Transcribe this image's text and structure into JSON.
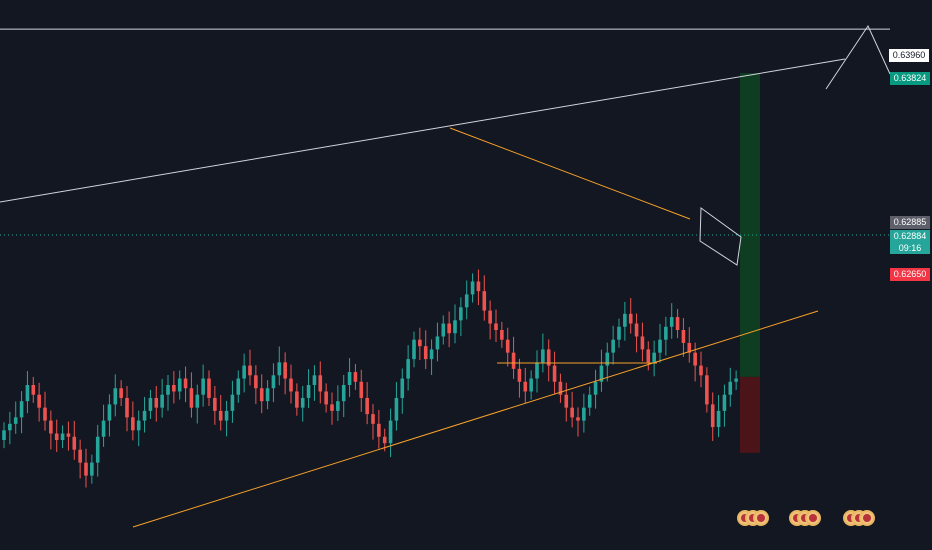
{
  "price_scale": {
    "top_level": "0.63960",
    "target": "0.63824",
    "last_marker": "0.62885",
    "current_price": "0.62884",
    "countdown": "09:16",
    "stop": "0.62650"
  },
  "colors": {
    "background": "#131722",
    "bull": "#26a69a",
    "bear": "#ef5350",
    "trend_white": "#d1d4dc",
    "trend_orange": "#f7a129",
    "target_zone": "#0f3d22",
    "stop_zone": "#4a1418"
  },
  "event_icons": [
    "calendar-event-icon",
    "calendar-event-icon",
    "calendar-event-icon"
  ],
  "chart_data": {
    "type": "candlestick",
    "ylim": [
      0.6235,
      0.6405
    ],
    "levels": [
      0.6396,
      0.63824,
      0.62885,
      0.6265
    ],
    "closes": [
      0.6272,
      0.6274,
      0.6276,
      0.6281,
      0.6286,
      0.6283,
      0.6279,
      0.6275,
      0.6271,
      0.6269,
      0.6271,
      0.627,
      0.6266,
      0.6262,
      0.6258,
      0.6262,
      0.627,
      0.6275,
      0.628,
      0.6285,
      0.6282,
      0.6276,
      0.6272,
      0.6275,
      0.6278,
      0.6282,
      0.6279,
      0.6283,
      0.6286,
      0.6284,
      0.6288,
      0.6285,
      0.6279,
      0.6283,
      0.6288,
      0.6282,
      0.6278,
      0.6275,
      0.6278,
      0.6283,
      0.6288,
      0.6292,
      0.6289,
      0.6285,
      0.6281,
      0.6285,
      0.6289,
      0.6293,
      0.6288,
      0.6284,
      0.6279,
      0.6282,
      0.6286,
      0.6289,
      0.6284,
      0.628,
      0.6278,
      0.6281,
      0.6286,
      0.629,
      0.6287,
      0.6282,
      0.6277,
      0.6274,
      0.627,
      0.6268,
      0.6275,
      0.6282,
      0.6288,
      0.6294,
      0.63,
      0.6298,
      0.6294,
      0.6297,
      0.6301,
      0.6305,
      0.6302,
      0.6306,
      0.631,
      0.6314,
      0.6318,
      0.6315,
      0.6309,
      0.6305,
      0.6303,
      0.63,
      0.6296,
      0.6291,
      0.6287,
      0.6284,
      0.6288,
      0.6293,
      0.6297,
      0.6292,
      0.6287,
      0.6283,
      0.6279,
      0.6276,
      0.6275,
      0.6279,
      0.6283,
      0.6287,
      0.6292,
      0.6296,
      0.63,
      0.6304,
      0.6308,
      0.6305,
      0.6301,
      0.6297,
      0.6293,
      0.6296,
      0.63,
      0.6304,
      0.6307,
      0.6303,
      0.6299,
      0.6296,
      0.6292,
      0.6289,
      0.628,
      0.6273,
      0.6278,
      0.6283,
      0.6287,
      0.6288
    ]
  }
}
